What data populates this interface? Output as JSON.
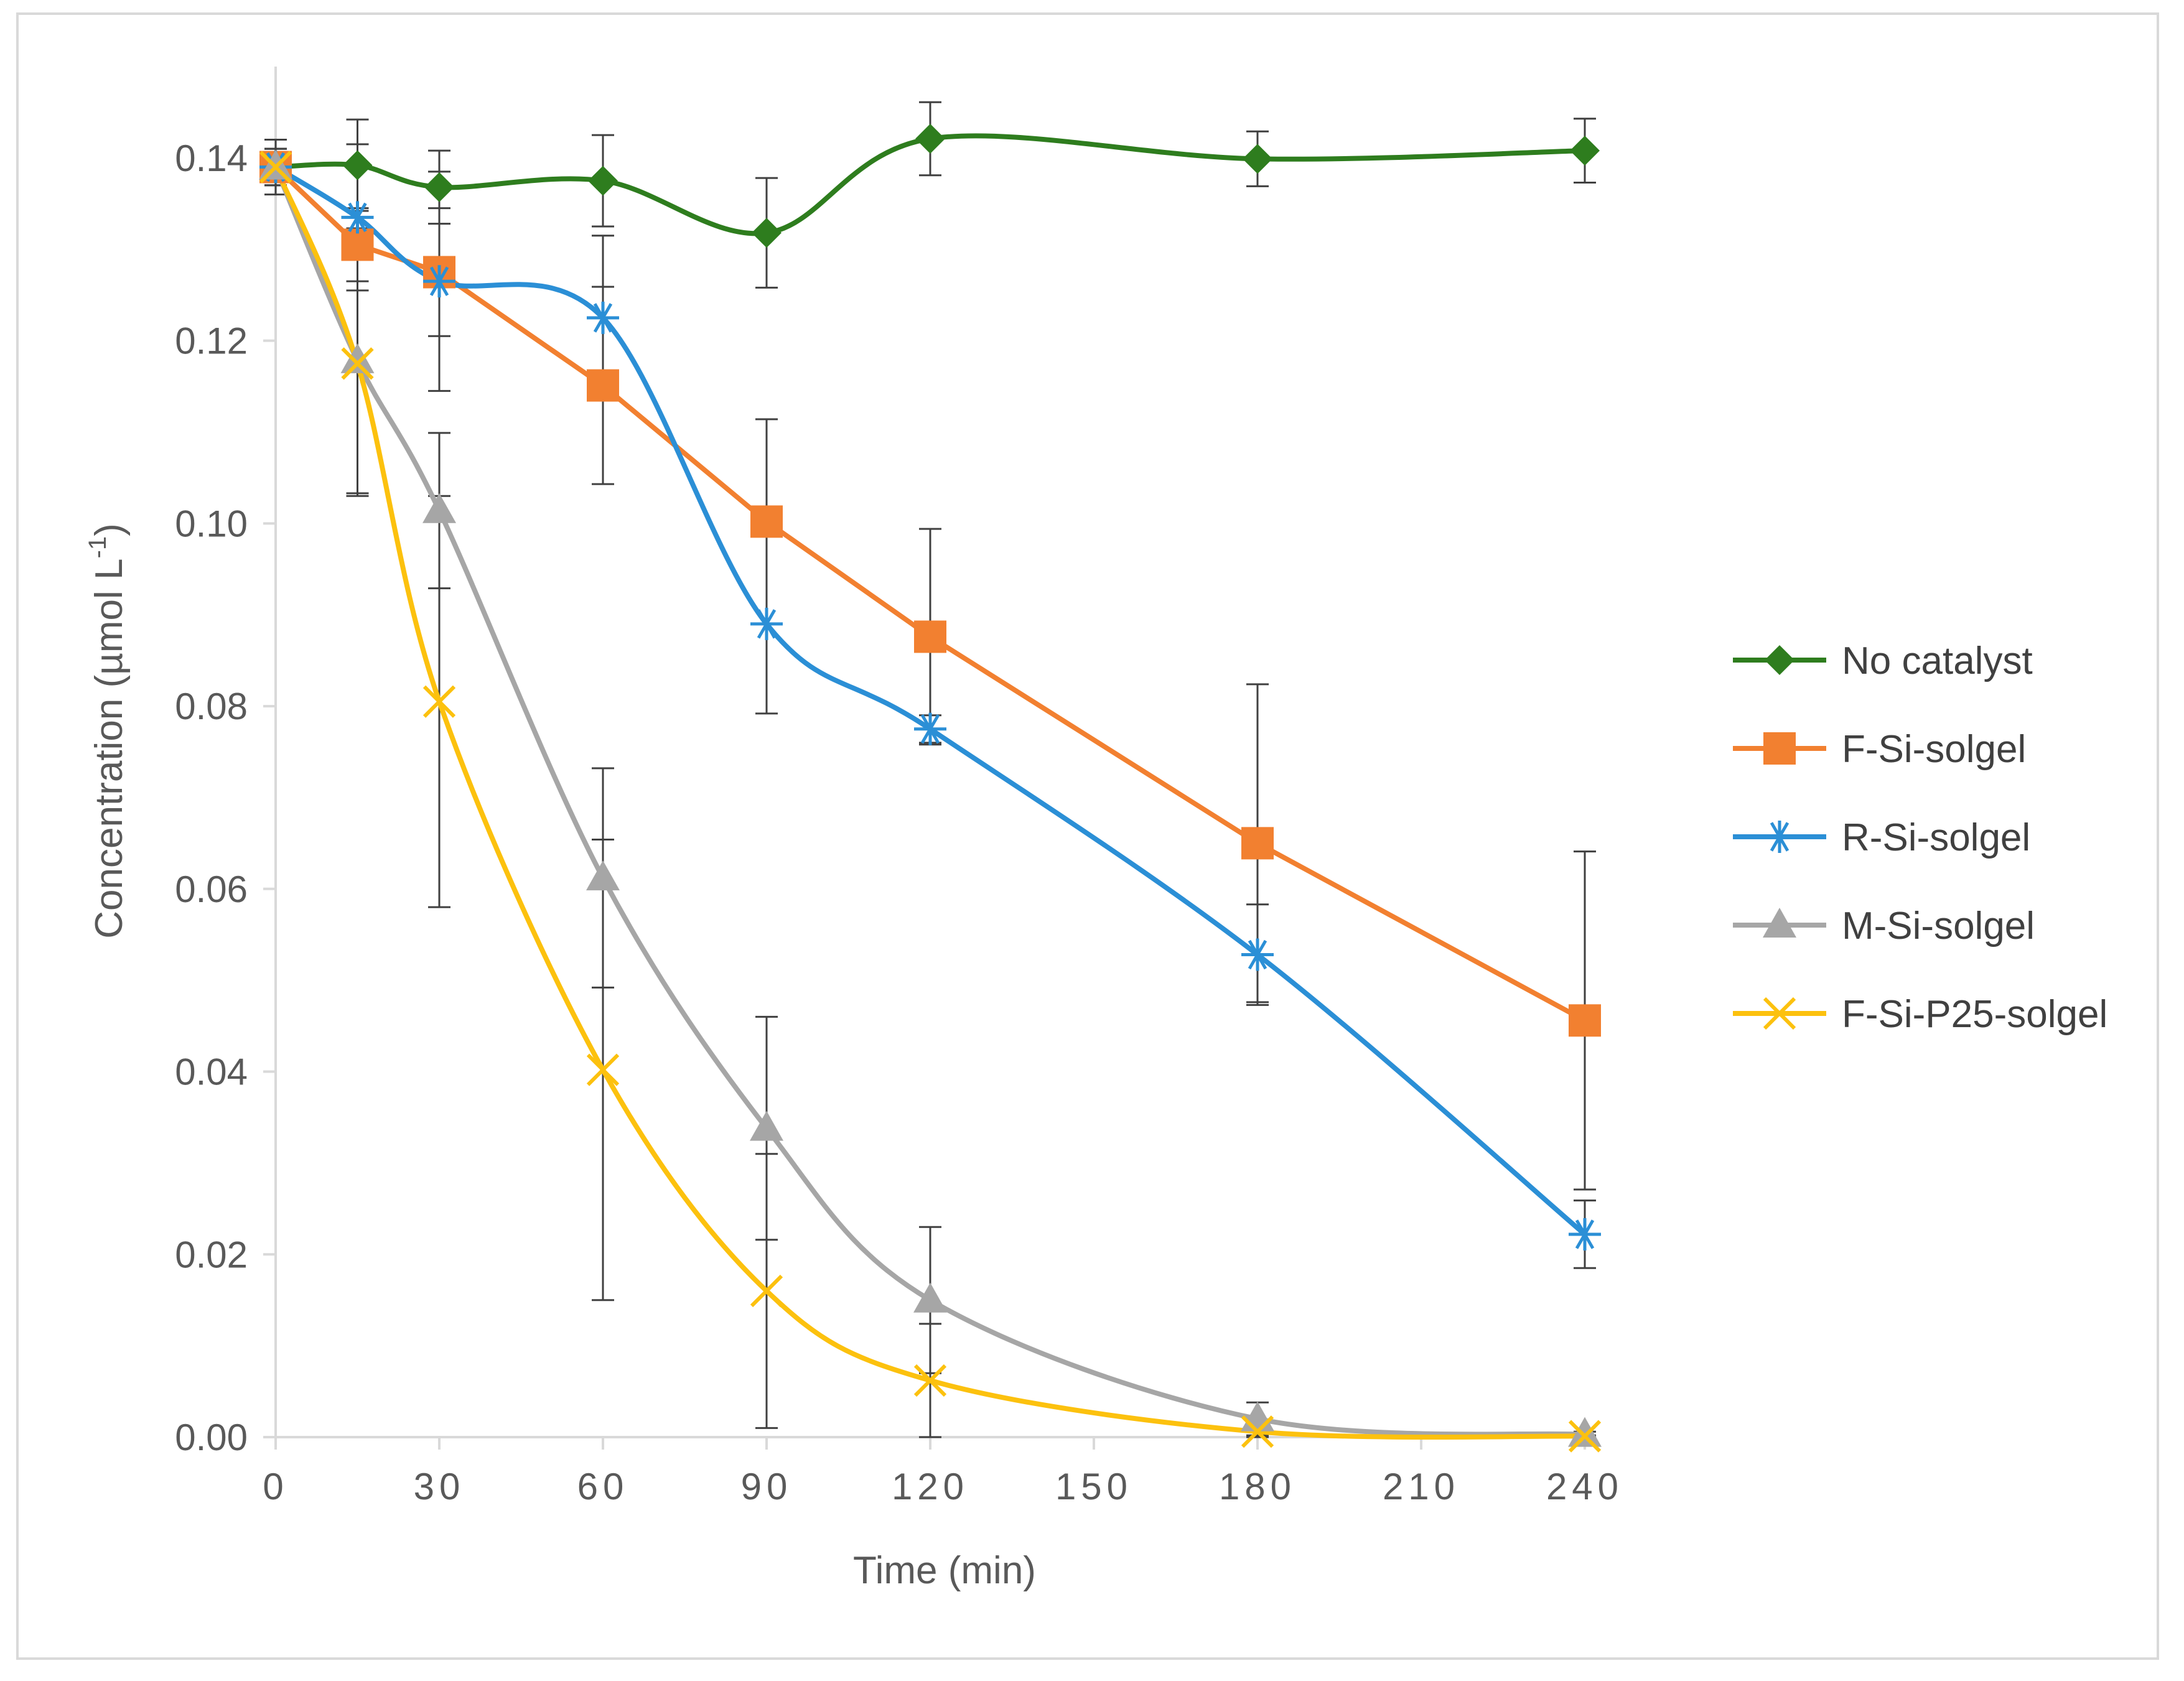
{
  "chart_data": {
    "type": "line",
    "title": "",
    "xlabel": "Time (min)",
    "ylabel_main": "Concentration (µmol L",
    "ylabel_sup": "-1",
    "ylabel_close": ")",
    "xlim": [
      0,
      240
    ],
    "ylim": [
      0,
      0.15
    ],
    "x_ticks": [
      0,
      30,
      60,
      90,
      120,
      150,
      180,
      210,
      240
    ],
    "x_tick_labels": [
      "0",
      "30",
      "60",
      "90",
      "120",
      "150",
      "180",
      "210",
      "240"
    ],
    "y_ticks": [
      0.0,
      0.02,
      0.04,
      0.06,
      0.08,
      0.1,
      0.12,
      0.14
    ],
    "y_tick_labels": [
      "0.00",
      "0.02",
      "0.04",
      "0.06",
      "0.08",
      "0.10",
      "0.12",
      "0.14"
    ],
    "grid": false,
    "legend_position": "right",
    "x": [
      0,
      15,
      30,
      60,
      90,
      120,
      180,
      240
    ],
    "series": [
      {
        "name": "No catalyst",
        "color": "#2e7d1e",
        "marker": "diamond",
        "smooth": true,
        "values": [
          0.139,
          0.1392,
          0.1368,
          0.1375,
          0.1318,
          0.1421,
          0.1399,
          0.1408
        ],
        "errors": [
          0.003,
          0.005,
          0.004,
          0.005,
          0.006,
          0.004,
          0.003,
          0.0035
        ]
      },
      {
        "name": "F-Si-solgel",
        "color": "#f28030",
        "marker": "square",
        "smooth": false,
        "values": [
          0.139,
          0.1305,
          0.1275,
          0.1151,
          0.1002,
          0.0876,
          0.065,
          0.0456
        ],
        "errors": [
          0.002,
          0.004,
          0.007,
          0.0108,
          0.0112,
          0.0118,
          0.0174,
          0.0185
        ]
      },
      {
        "name": "R-Si-solgel",
        "color": "#2b8fd6",
        "marker": "asterisk",
        "smooth": true,
        "values": [
          0.139,
          0.1335,
          0.1265,
          0.1225,
          0.089,
          0.0775,
          0.0528,
          0.0222
        ],
        "errors": [
          0.002,
          0.008,
          0.012,
          0.009,
          0.0098,
          0.0015,
          0.0055,
          0.0037
        ]
      },
      {
        "name": "M-Si-solgel",
        "color": "#a6a6a6",
        "marker": "triangle",
        "smooth": true,
        "values": [
          0.139,
          0.1178,
          0.1014,
          0.0612,
          0.0338,
          0.015,
          0.002,
          0.0003
        ],
        "errors": [
          0.002,
          0.0145,
          0.0085,
          0.012,
          0.0122,
          0.008,
          0.0018,
          0.0003
        ]
      },
      {
        "name": "F-Si-P25-solgel",
        "color": "#fcc10e",
        "marker": "x",
        "smooth": true,
        "values": [
          0.139,
          0.1175,
          0.0805,
          0.0402,
          0.016,
          0.0062,
          0.0006,
          0.0001
        ],
        "errors": [
          0.002,
          0.0145,
          0.0225,
          0.0252,
          0.015,
          0.0062,
          0.0006,
          0.0001
        ]
      }
    ]
  }
}
